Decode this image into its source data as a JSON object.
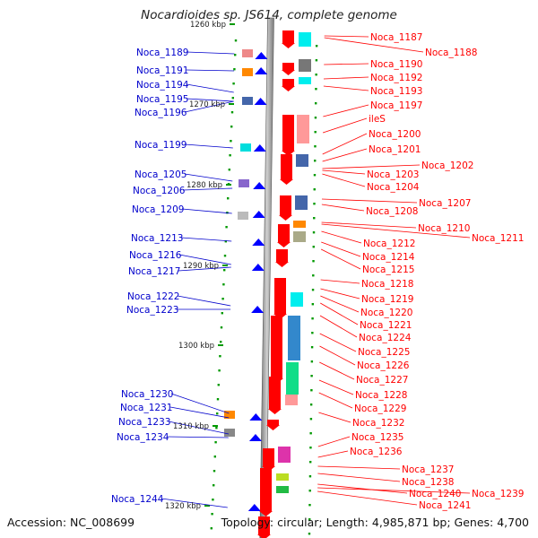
{
  "title": "Nocardioides sp. JS614, complete genome",
  "accession": "Accession: NC_008699",
  "topology": "Topology: circular; Length: 4,985,871 bp; Genes: 4,700",
  "colors": {
    "backbone": "#8f8f8f",
    "forward_gene": "#ff0000",
    "reverse_gene": "#0000ff",
    "forward_label": "#ff0000",
    "reverse_label": "#0000cc",
    "tick": "#009900"
  },
  "ruler_labels": [
    "1260 kbp",
    "1270 kbp",
    "1280 kbp",
    "1290 kbp",
    "1300 kbp",
    "1310 kbp",
    "1320 kbp"
  ],
  "reverse_genes": [
    "Noca_1189",
    "Noca_1191",
    "Noca_1194",
    "Noca_1195",
    "Noca_1196",
    "Noca_1199",
    "Noca_1205",
    "Noca_1206",
    "Noca_1209",
    "Noca_1213",
    "Noca_1216",
    "Noca_1217",
    "Noca_1222",
    "Noca_1223",
    "Noca_1230",
    "Noca_1231",
    "Noca_1233",
    "Noca_1234",
    "Noca_1244"
  ],
  "forward_genes": [
    "Noca_1187",
    "Noca_1188",
    "Noca_1190",
    "Noca_1192",
    "Noca_1193",
    "Noca_1197",
    "ileS",
    "Noca_1200",
    "Noca_1201",
    "Noca_1202",
    "Noca_1203",
    "Noca_1204",
    "Noca_1207",
    "Noca_1208",
    "Noca_1210",
    "Noca_1211",
    "Noca_1212",
    "Noca_1214",
    "Noca_1215",
    "Noca_1218",
    "Noca_1219",
    "Noca_1220",
    "Noca_1221",
    "Noca_1224",
    "Noca_1225",
    "Noca_1226",
    "Noca_1227",
    "Noca_1228",
    "Noca_1229",
    "Noca_1232",
    "Noca_1235",
    "Noca_1236",
    "Noca_1237",
    "Noca_1238",
    "Noca_1240",
    "Noca_1239",
    "Noca_1241"
  ]
}
